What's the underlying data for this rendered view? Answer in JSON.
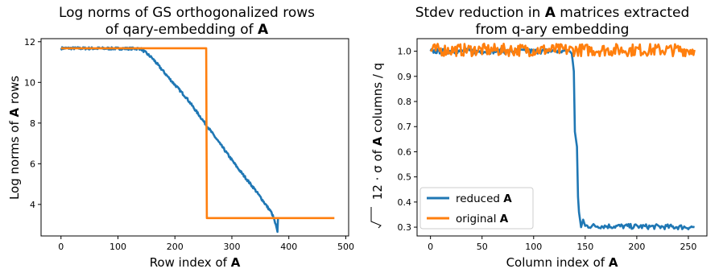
{
  "chart_data": [
    {
      "type": "line",
      "title_line1": "Log norms of GS orthogonalized rows",
      "title_line2": "of qary-embedding of ",
      "title_bold": "A",
      "xlabel": "Row index of ",
      "xlabel_bold": "A",
      "ylabel": "Log norms of ",
      "ylabel_bold": "A",
      "ylabel_suffix": " rows",
      "xlim": [
        -35,
        505
      ],
      "ylim": [
        2.45,
        12.15
      ],
      "xticks": [
        0,
        100,
        200,
        300,
        400,
        500
      ],
      "yticks": [
        4,
        6,
        8,
        10,
        12
      ],
      "series": [
        {
          "color": "#1f77b4",
          "x": [
            0,
            140,
            160,
            190,
            220,
            250,
            280,
            310,
            340,
            370,
            375,
            380,
            381
          ],
          "y": [
            11.68,
            11.66,
            11.2,
            10.2,
            9.25,
            8.1,
            6.95,
            5.8,
            4.75,
            3.58,
            3.2,
            2.65,
            3.35
          ]
        },
        {
          "color": "#ff7f0e",
          "x": [
            0,
            255,
            256,
            480
          ],
          "y": [
            11.68,
            11.68,
            3.33,
            3.33
          ]
        }
      ]
    },
    {
      "type": "line",
      "title_line1_a": "Stdev reduction in ",
      "title_bold": "A",
      "title_line1_b": " matrices extracted",
      "title_line2": "from q-ary embedding",
      "xlabel": "Column index of ",
      "xlabel_bold": "A",
      "ylabel_sqrt": "12",
      "ylabel_mid": " · σ of ",
      "ylabel_bold": "A",
      "ylabel_suffix": " columns / q",
      "xlim": [
        -13,
        268
      ],
      "ylim": [
        0.265,
        1.05
      ],
      "xticks": [
        0,
        50,
        100,
        150,
        200,
        250
      ],
      "yticks": [
        0.3,
        0.4,
        0.5,
        0.6,
        0.7,
        0.8,
        0.9,
        1.0
      ],
      "ytick_labels": [
        "0.3",
        "0.4",
        "0.5",
        "0.6",
        "0.7",
        "0.8",
        "0.9",
        "1.0"
      ],
      "legend_position": "lower-left",
      "series": [
        {
          "name_prefix": "reduced ",
          "name_bold": "A",
          "color": "#1f77b4",
          "x": [
            0,
            135,
            137,
            139,
            140,
            141,
            142,
            143,
            144,
            146,
            148,
            150,
            256
          ],
          "y": [
            1.0,
            1.0,
            0.99,
            0.92,
            0.68,
            0.65,
            0.62,
            0.42,
            0.36,
            0.3,
            0.33,
            0.305,
            0.3
          ]
        },
        {
          "name_prefix": "original ",
          "name_bold": "A",
          "color": "#ff7f0e",
          "x": [
            0,
            256
          ],
          "y": [
            1.005,
            1.005
          ]
        }
      ]
    }
  ]
}
